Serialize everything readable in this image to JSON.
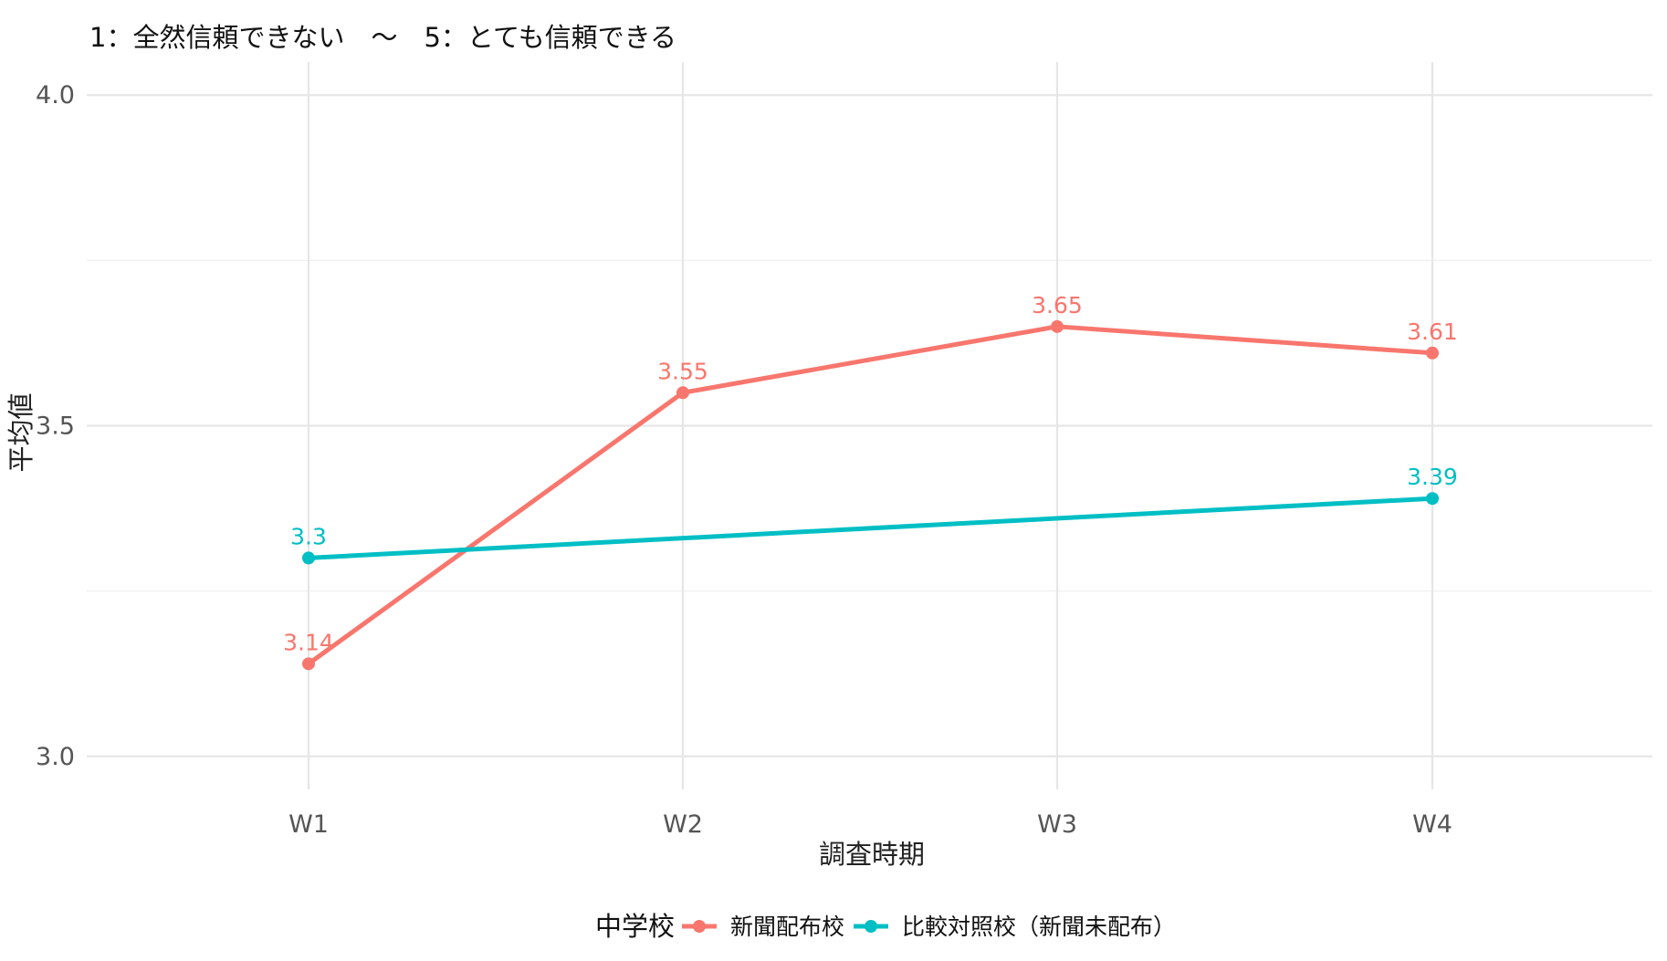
{
  "chart_data": {
    "type": "line",
    "subtitle": "1：全然信頼できない　～　5：とても信頼できる",
    "xlabel": "調査時期",
    "ylabel": "平均値",
    "categories": [
      "W1",
      "W2",
      "W3",
      "W4"
    ],
    "ylim": [
      2.95,
      4.05
    ],
    "yticks": [
      "3.0",
      "3.5",
      "4.0"
    ],
    "grid": true,
    "legend": {
      "title": "中学校",
      "position": "bottom"
    },
    "series": [
      {
        "name": "新聞配布校",
        "color": "#F8766D",
        "values": [
          3.14,
          3.55,
          3.65,
          3.61
        ],
        "labels": [
          "3.14",
          "3.55",
          "3.65",
          "3.61"
        ]
      },
      {
        "name": "比較対照校（新聞未配布）",
        "color": "#00BFC4",
        "values": [
          3.3,
          null,
          null,
          3.39
        ],
        "labels": [
          "3.3",
          "",
          "",
          "3.39"
        ]
      }
    ]
  }
}
